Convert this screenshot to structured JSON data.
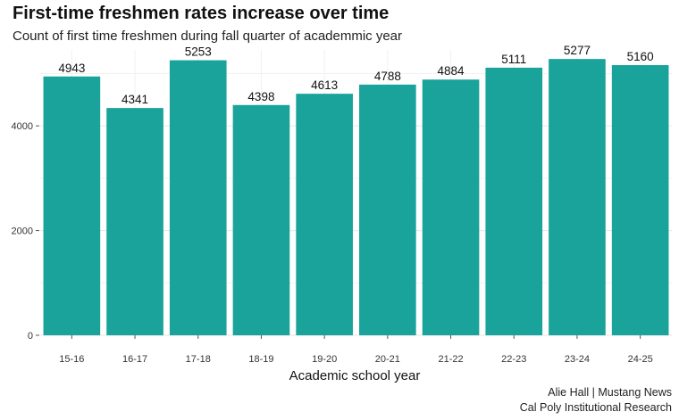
{
  "chart_data": {
    "type": "bar",
    "title": "First-time freshmen rates increase over time",
    "subtitle": "Count of first time freshmen during fall quarter of academmic year",
    "xlabel": "Academic school year",
    "ylabel": "",
    "categories": [
      "15-16",
      "16-17",
      "17-18",
      "18-19",
      "19-20",
      "20-21",
      "21-22",
      "22-23",
      "23-24",
      "24-25"
    ],
    "values": [
      4943,
      4341,
      5253,
      4398,
      4613,
      4788,
      4884,
      5111,
      5277,
      5160
    ],
    "ylim": [
      0,
      5450
    ],
    "yticks": [
      0,
      2000,
      4000
    ],
    "ytick_labels": [
      "0",
      "2000",
      "4000"
    ],
    "grid": true,
    "bar_color": "#1aa39a"
  },
  "credits": {
    "line1": "Alie Hall | Mustang News",
    "line2": "Cal Poly Institutional Research"
  }
}
